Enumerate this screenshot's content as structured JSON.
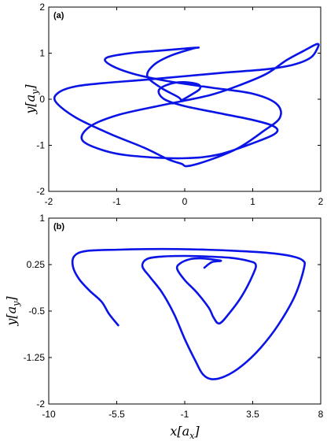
{
  "accent_color": "#0a14e6",
  "chart_data": [
    {
      "type": "line",
      "panel_label": "(a)",
      "xlabel": "",
      "ylabel": "y[a_y]",
      "xlim": [
        -2,
        2
      ],
      "ylim": [
        -2,
        2
      ],
      "xticks": [
        "-2",
        "-1",
        "0",
        "1",
        "2"
      ],
      "yticks": [
        "-2",
        "-1",
        "0",
        "1",
        "2"
      ],
      "grid": false,
      "series": [
        {
          "color": "#0a14e6",
          "x": [
            -0.05,
            0.1,
            0.22,
            0.2,
            0.0,
            -0.2,
            -0.38,
            -0.3,
            0.0,
            0.5,
            1.0,
            1.3,
            1.35,
            1.1,
            0.5,
            0.0,
            -0.6,
            -1.1,
            -1.5,
            -1.4,
            -1.0,
            -0.4,
            0.0,
            0.4,
            0.8,
            1.2,
            1.5,
            1.75,
            1.95,
            1.95,
            1.85,
            1.6,
            1.2,
            0.6,
            0.0,
            -0.6,
            -1.2,
            -1.6,
            -1.85,
            -1.9,
            -1.6,
            -1.1,
            -0.6,
            -0.25,
            -0.05,
            0.05,
            0.4,
            0.8,
            1.15,
            1.4,
            1.35,
            1.0,
            0.4,
            -0.2,
            -0.75,
            -1.1,
            -1.15,
            -0.8,
            -0.4,
            0.0,
            0.2,
            0.12,
            -0.2,
            -0.45,
            -0.55,
            -0.35,
            -0.1,
            -0.05
          ],
          "y": [
            -0.03,
            0.1,
            0.22,
            0.32,
            0.37,
            0.34,
            0.2,
            0.0,
            -0.15,
            -0.3,
            -0.45,
            -0.58,
            -0.72,
            -0.9,
            -1.2,
            -1.28,
            -1.25,
            -1.15,
            -0.9,
            -0.6,
            -0.35,
            -0.15,
            -0.03,
            0.1,
            0.3,
            0.55,
            0.85,
            1.05,
            1.2,
            1.1,
            0.9,
            0.75,
            0.65,
            0.58,
            0.5,
            0.42,
            0.35,
            0.28,
            0.15,
            -0.05,
            -0.4,
            -0.75,
            -1.05,
            -1.3,
            -1.4,
            -1.45,
            -1.3,
            -1.05,
            -0.7,
            -0.4,
            -0.1,
            0.12,
            0.25,
            0.38,
            0.55,
            0.75,
            0.9,
            1.0,
            1.05,
            1.1,
            1.12,
            1.1,
            0.95,
            0.75,
            0.5,
            0.25,
            0.05,
            -0.03
          ]
        }
      ]
    },
    {
      "type": "line",
      "panel_label": "(b)",
      "xlabel": "x[a_x]",
      "ylabel": "y[a_y]",
      "xlim": [
        -10,
        8
      ],
      "ylim": [
        -2,
        1
      ],
      "xticks": [
        "-10",
        "-5.5",
        "-1",
        "3.5",
        "8"
      ],
      "yticks": [
        "-2",
        "-1.25",
        "-0.5",
        "0.25",
        "1"
      ],
      "grid": false,
      "series": [
        {
          "color": "#0a14e6",
          "x": [
            0.3,
            0.8,
            1.4,
            0.9,
            0.1,
            -0.6,
            -1.3,
            -1.5,
            -1.0,
            -0.2,
            0.6,
            0.9,
            1.3,
            2.0,
            2.8,
            3.5,
            3.7,
            3.2,
            2.0,
            0.5,
            -1.0,
            -2.5,
            -3.5,
            -3.8,
            -3.3,
            -2.5,
            -1.7,
            -1.0,
            -0.3,
            0.2,
            0.8,
            1.7,
            2.8,
            4.0,
            5.2,
            6.3,
            6.9,
            6.8,
            6.0,
            4.5,
            2.5,
            0.5,
            -1.5,
            -3.5,
            -5.5,
            -7.5,
            -8.3,
            -8.4,
            -8.0,
            -7.3,
            -6.5,
            -6.0,
            -5.4
          ],
          "y": [
            0.2,
            0.29,
            0.31,
            0.33,
            0.35,
            0.34,
            0.27,
            0.18,
            0.0,
            -0.2,
            -0.45,
            -0.6,
            -0.7,
            -0.52,
            -0.25,
            0.08,
            0.25,
            0.31,
            0.36,
            0.38,
            0.39,
            0.38,
            0.34,
            0.22,
            0.05,
            -0.2,
            -0.55,
            -0.95,
            -1.3,
            -1.52,
            -1.6,
            -1.55,
            -1.38,
            -1.1,
            -0.72,
            -0.25,
            0.2,
            0.32,
            0.39,
            0.44,
            0.47,
            0.49,
            0.5,
            0.5,
            0.49,
            0.47,
            0.39,
            0.22,
            0.02,
            -0.17,
            -0.35,
            -0.55,
            -0.73
          ]
        }
      ]
    }
  ]
}
